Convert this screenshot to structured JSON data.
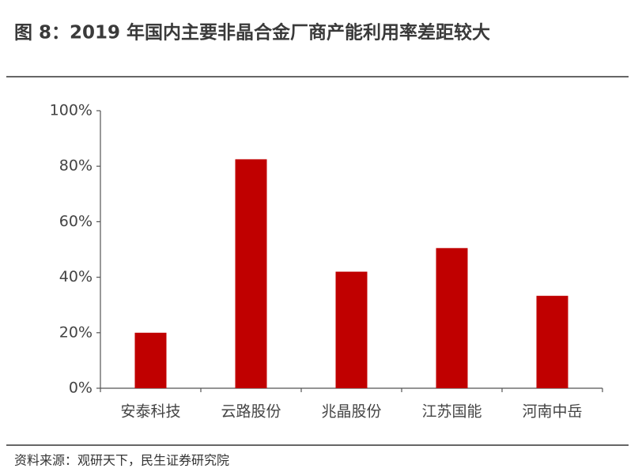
{
  "chart_data": {
    "type": "bar",
    "title": "图 8：2019 年国内主要非晶合金厂商产能利用率差距较大",
    "source": "资料来源：观研天下，民生证券研究院",
    "categories": [
      "安泰科技",
      "云路股份",
      "兆晶股份",
      "江苏国能",
      "河南中岳"
    ],
    "values": [
      20,
      82.5,
      42,
      50.5,
      33.3
    ],
    "color": "#c00000",
    "ylim": [
      0,
      100
    ],
    "yticks": [
      {
        "value": 0,
        "label": "0%"
      },
      {
        "value": 20,
        "label": "20%"
      },
      {
        "value": 40,
        "label": "40%"
      },
      {
        "value": 60,
        "label": "60%"
      },
      {
        "value": 80,
        "label": "80%"
      },
      {
        "value": 100,
        "label": "100%"
      }
    ],
    "grid": false
  }
}
